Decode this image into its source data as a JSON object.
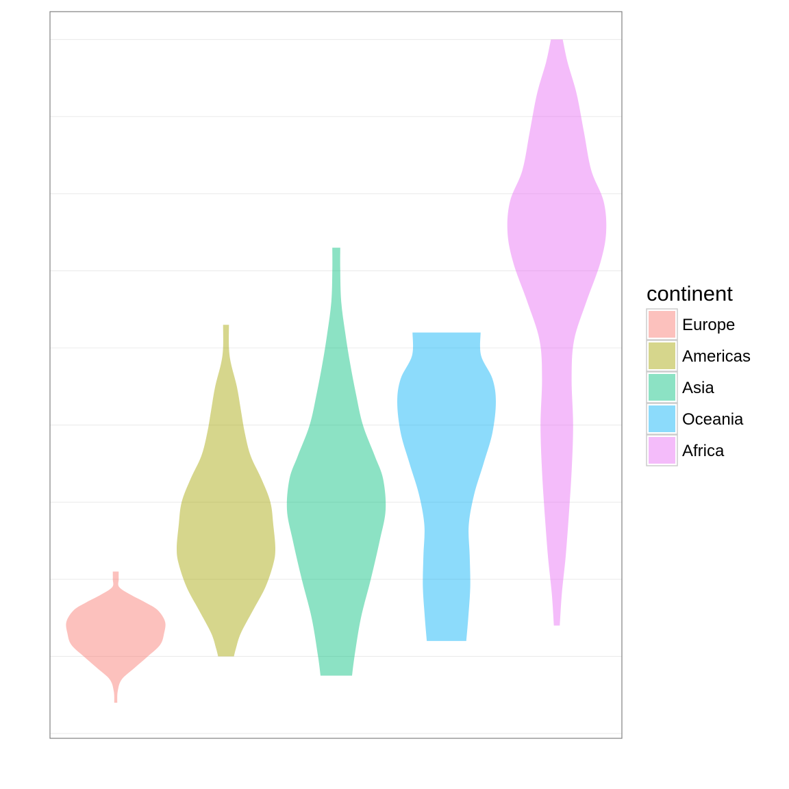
{
  "chart_data": {
    "type": "violin",
    "title": "",
    "xlabel": "",
    "ylabel": "",
    "x_tick_labels_visible": false,
    "y_tick_labels_visible": false,
    "grid": "horizontal",
    "legend_position": "right",
    "legend_title": "continent",
    "ylim": [
      0,
      9.4
    ],
    "y_grid_values": [
      0,
      1,
      2,
      3,
      4,
      5,
      6,
      7,
      8,
      9
    ],
    "series": [
      {
        "name": "Europe",
        "color": "#F8766D",
        "min": 0.4,
        "max": 2.1,
        "profile": [
          [
            0.4,
            0.03
          ],
          [
            0.55,
            0.04
          ],
          [
            0.7,
            0.12
          ],
          [
            0.85,
            0.38
          ],
          [
            1.0,
            0.65
          ],
          [
            1.15,
            0.9
          ],
          [
            1.3,
            0.98
          ],
          [
            1.45,
            1.0
          ],
          [
            1.6,
            0.85
          ],
          [
            1.7,
            0.6
          ],
          [
            1.8,
            0.3
          ],
          [
            1.9,
            0.07
          ],
          [
            2.0,
            0.06
          ],
          [
            2.1,
            0.06
          ]
        ]
      },
      {
        "name": "Americas",
        "color": "#A3A500",
        "min": 1.0,
        "max": 5.3,
        "profile": [
          [
            1.0,
            0.16
          ],
          [
            1.1,
            0.2
          ],
          [
            1.3,
            0.3
          ],
          [
            1.6,
            0.55
          ],
          [
            1.9,
            0.8
          ],
          [
            2.2,
            0.96
          ],
          [
            2.4,
            1.0
          ],
          [
            2.7,
            0.96
          ],
          [
            3.0,
            0.9
          ],
          [
            3.3,
            0.72
          ],
          [
            3.6,
            0.5
          ],
          [
            3.9,
            0.38
          ],
          [
            4.2,
            0.3
          ],
          [
            4.5,
            0.22
          ],
          [
            4.8,
            0.1
          ],
          [
            5.0,
            0.06
          ],
          [
            5.3,
            0.06
          ]
        ]
      },
      {
        "name": "Asia",
        "color": "#00BF7D",
        "min": 0.75,
        "max": 6.3,
        "profile": [
          [
            0.75,
            0.32
          ],
          [
            1.0,
            0.37
          ],
          [
            1.5,
            0.5
          ],
          [
            2.0,
            0.7
          ],
          [
            2.5,
            0.88
          ],
          [
            2.9,
            1.0
          ],
          [
            3.3,
            0.95
          ],
          [
            3.6,
            0.78
          ],
          [
            4.0,
            0.54
          ],
          [
            4.4,
            0.4
          ],
          [
            4.8,
            0.28
          ],
          [
            5.2,
            0.18
          ],
          [
            5.6,
            0.1
          ],
          [
            6.0,
            0.08
          ],
          [
            6.3,
            0.08
          ]
        ]
      },
      {
        "name": "Oceania",
        "color": "#00B0F6",
        "min": 1.2,
        "max": 5.2,
        "profile": [
          [
            1.2,
            0.4
          ],
          [
            1.5,
            0.44
          ],
          [
            1.9,
            0.48
          ],
          [
            2.3,
            0.47
          ],
          [
            2.7,
            0.45
          ],
          [
            3.1,
            0.56
          ],
          [
            3.5,
            0.75
          ],
          [
            3.9,
            0.93
          ],
          [
            4.3,
            1.0
          ],
          [
            4.6,
            0.93
          ],
          [
            4.9,
            0.7
          ],
          [
            5.2,
            0.69
          ]
        ]
      },
      {
        "name": "Africa",
        "color": "#E76BF3",
        "min": 1.4,
        "max": 9.0,
        "profile": [
          [
            1.4,
            0.06
          ],
          [
            1.8,
            0.1
          ],
          [
            2.3,
            0.18
          ],
          [
            2.8,
            0.24
          ],
          [
            3.4,
            0.3
          ],
          [
            4.0,
            0.33
          ],
          [
            4.6,
            0.3
          ],
          [
            5.1,
            0.35
          ],
          [
            5.6,
            0.6
          ],
          [
            6.1,
            0.88
          ],
          [
            6.5,
            1.0
          ],
          [
            6.9,
            0.95
          ],
          [
            7.3,
            0.7
          ],
          [
            7.8,
            0.55
          ],
          [
            8.3,
            0.4
          ],
          [
            8.7,
            0.22
          ],
          [
            9.0,
            0.12
          ]
        ]
      }
    ]
  }
}
